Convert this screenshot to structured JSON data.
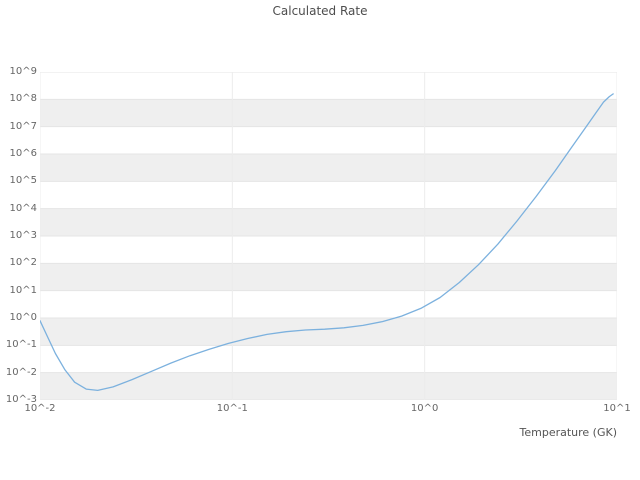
{
  "chart_data": {
    "type": "line",
    "title": "Calculated Rate",
    "xlabel": "Temperature (GK)",
    "ylabel": "",
    "x_scale": "log10",
    "y_scale": "log10",
    "xlim_log10": [
      -2,
      1
    ],
    "ylim_log10": [
      -3,
      9
    ],
    "grid": true,
    "legend": "none",
    "stripe_color": "#efefef",
    "gridline_color_h": "#e4e4e4",
    "gridline_color_v": "#ececec",
    "stripe_decades_log10": [
      -3,
      -1,
      1,
      3,
      5,
      7
    ],
    "x_ticks": [
      {
        "exp": -2,
        "label": "10^-2"
      },
      {
        "exp": -1,
        "label": "10^-1"
      },
      {
        "exp": 0,
        "label": "10^0"
      },
      {
        "exp": 1,
        "label": "10^1"
      }
    ],
    "y_ticks": [
      {
        "exp": 9,
        "label": "10^9"
      },
      {
        "exp": 8,
        "label": "10^8"
      },
      {
        "exp": 7,
        "label": "10^7"
      },
      {
        "exp": 6,
        "label": "10^6"
      },
      {
        "exp": 5,
        "label": "10^5"
      },
      {
        "exp": 4,
        "label": "10^4"
      },
      {
        "exp": 3,
        "label": "10^3"
      },
      {
        "exp": 2,
        "label": "10^2"
      },
      {
        "exp": 1,
        "label": "10^1"
      },
      {
        "exp": 0,
        "label": "10^0"
      },
      {
        "exp": -1,
        "label": "10^-1"
      },
      {
        "exp": -2,
        "label": "10^-2"
      },
      {
        "exp": -3,
        "label": "10^-3"
      }
    ],
    "series": [
      {
        "name": "calculated-rate",
        "color": "#7cb1de",
        "stroke_width": 1.3,
        "points_log10": [
          [
            -2.0,
            -0.1
          ],
          [
            -1.96,
            -0.7
          ],
          [
            -1.92,
            -1.3
          ],
          [
            -1.87,
            -1.9
          ],
          [
            -1.82,
            -2.35
          ],
          [
            -1.76,
            -2.6
          ],
          [
            -1.7,
            -2.65
          ],
          [
            -1.62,
            -2.52
          ],
          [
            -1.52,
            -2.25
          ],
          [
            -1.42,
            -1.95
          ],
          [
            -1.32,
            -1.65
          ],
          [
            -1.22,
            -1.38
          ],
          [
            -1.12,
            -1.14
          ],
          [
            -1.02,
            -0.93
          ],
          [
            -0.92,
            -0.75
          ],
          [
            -0.82,
            -0.6
          ],
          [
            -0.72,
            -0.5
          ],
          [
            -0.62,
            -0.44
          ],
          [
            -0.52,
            -0.41
          ],
          [
            -0.42,
            -0.36
          ],
          [
            -0.32,
            -0.27
          ],
          [
            -0.22,
            -0.13
          ],
          [
            -0.12,
            0.07
          ],
          [
            -0.02,
            0.35
          ],
          [
            0.08,
            0.75
          ],
          [
            0.18,
            1.3
          ],
          [
            0.28,
            1.95
          ],
          [
            0.38,
            2.7
          ],
          [
            0.48,
            3.55
          ],
          [
            0.58,
            4.45
          ],
          [
            0.68,
            5.4
          ],
          [
            0.76,
            6.2
          ],
          [
            0.83,
            6.9
          ],
          [
            0.89,
            7.5
          ],
          [
            0.93,
            7.9
          ],
          [
            0.96,
            8.1
          ],
          [
            0.98,
            8.2
          ]
        ]
      }
    ]
  }
}
